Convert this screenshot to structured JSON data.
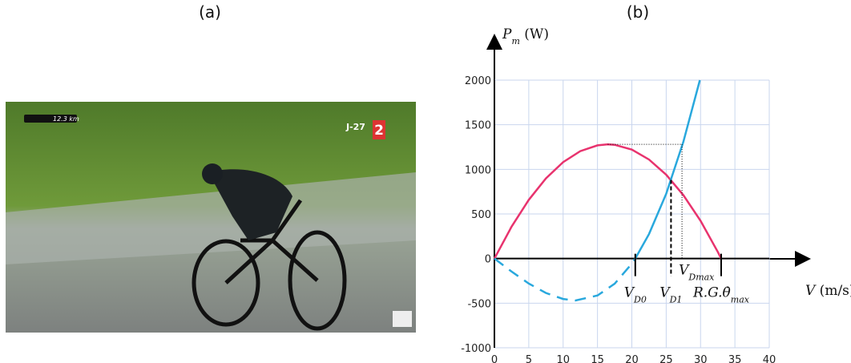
{
  "panel_labels": [
    "(a)",
    "(b)"
  ],
  "photo": {
    "overlay_distance": "12.3 km",
    "overlay_countdown": "J-27",
    "overlay_channel": "2"
  },
  "chart_data": {
    "type": "line",
    "y_label": {
      "text": "P",
      "sub": "m",
      "unit": " (W)"
    },
    "x_label": {
      "text": "V",
      "unit": " (m/s)"
    },
    "xlim": [
      0,
      40
    ],
    "ylim": [
      -1000,
      2000
    ],
    "xticks": [
      0,
      5,
      10,
      15,
      20,
      25,
      30,
      35,
      40
    ],
    "yticks": [
      -1000,
      -500,
      0,
      500,
      1000,
      1500,
      2000
    ],
    "grid": true,
    "series": [
      {
        "color": "#e8336e",
        "style": "solid",
        "x": [
          0,
          2.5,
          5,
          7.5,
          10,
          12.5,
          15,
          16.5,
          17.5,
          20,
          22.5,
          25,
          27.5,
          30,
          32.5,
          33
        ],
        "values": [
          0,
          358,
          658,
          899,
          1081,
          1204,
          1269,
          1280,
          1275,
          1222,
          1110,
          940,
          711,
          423,
          76,
          0
        ]
      },
      {
        "color": "#29a8dd",
        "style": "dashed",
        "x": [
          0,
          2.5,
          5,
          7.5,
          10,
          11.8,
          15,
          17.5,
          20,
          20.5
        ],
        "values": [
          0,
          -146,
          -280,
          -386,
          -453,
          -470,
          -414,
          -282,
          -57,
          0
        ]
      },
      {
        "color": "#29a8dd",
        "style": "solid",
        "x": [
          20.5,
          22.5,
          25,
          27.5,
          29.9
        ],
        "values": [
          0,
          275,
          726,
          1309,
          2000
        ]
      }
    ],
    "annotations": [
      {
        "text": "V",
        "sub": "D0",
        "x": 20.5
      },
      {
        "text": "V",
        "sub": "D1",
        "x": 25.7,
        "y": 882
      },
      {
        "text": "V",
        "sub": "Dmax",
        "x": 27.3,
        "y": 1280,
        "from_x": 16.5
      },
      {
        "text": "R.G.θ̇",
        "sub": "max",
        "x": 33
      }
    ]
  }
}
